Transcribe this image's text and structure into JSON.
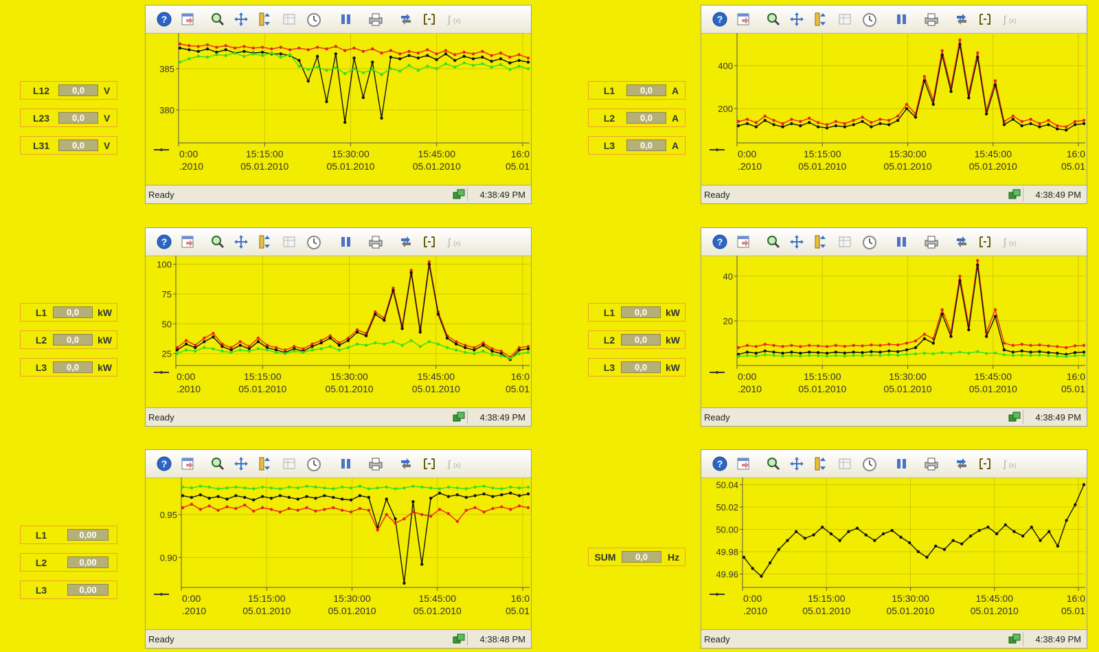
{
  "status_text": "Ready",
  "colors": {
    "background": "#f2ec00",
    "series_red": "#e8241e",
    "series_black": "#111111",
    "series_green": "#33e020"
  },
  "toolbar_icons": [
    "help-icon",
    "export-icon",
    "zoom-icon",
    "pan-icon",
    "scale-icon",
    "table-icon",
    "time-icon",
    "pause-icon",
    "print-icon",
    "sync-icon",
    "range-icon",
    "formula-icon"
  ],
  "panels": [
    {
      "time": "4:38:49 PM",
      "readouts": [
        {
          "label": "L12",
          "value": "0,0",
          "unit": "V"
        },
        {
          "label": "L23",
          "value": "0,0",
          "unit": "V"
        },
        {
          "label": "L31",
          "value": "0,0",
          "unit": "V"
        }
      ],
      "chart_data": {
        "type": "line",
        "yticks": [
          "385",
          "380"
        ],
        "ylim": [
          376,
          389
        ],
        "x_ticks": [
          {
            "time": "0:00",
            "date": ".2010"
          },
          {
            "time": "15:15:00",
            "date": "05.01.2010"
          },
          {
            "time": "15:30:00",
            "date": "05.01.2010"
          },
          {
            "time": "15:45:00",
            "date": "05.01.2010"
          },
          {
            "time": "16:0",
            "date": "05.01"
          }
        ],
        "series": [
          {
            "color": "red",
            "values": [
              388.0,
              387.8,
              387.7,
              387.9,
              387.6,
              387.8,
              387.5,
              387.7,
              387.5,
              387.6,
              387.4,
              387.6,
              387.3,
              387.5,
              387.3,
              387.6,
              387.4,
              387.7,
              387.2,
              387.5,
              387.1,
              387.4,
              386.9,
              387.2,
              386.8,
              387.1,
              386.9,
              387.3,
              386.8,
              387.2,
              386.7,
              387.0,
              386.8,
              387.1,
              386.6,
              386.9,
              386.4,
              386.7,
              386.3
            ]
          },
          {
            "color": "black",
            "values": [
              387.5,
              387.3,
              387.1,
              387.4,
              387.0,
              387.3,
              386.9,
              387.1,
              386.9,
              387.0,
              386.8,
              386.8,
              386.6,
              386.0,
              383.5,
              386.5,
              381.0,
              386.8,
              378.5,
              386.3,
              381.5,
              385.8,
              379.0,
              386.4,
              386.2,
              386.6,
              386.3,
              386.6,
              386.1,
              386.8,
              386.0,
              386.5,
              386.2,
              386.4,
              385.9,
              386.2,
              385.7,
              386.0,
              385.8
            ]
          },
          {
            "color": "green",
            "values": [
              385.8,
              386.2,
              386.5,
              386.4,
              386.7,
              386.6,
              386.9,
              386.5,
              386.8,
              386.6,
              386.9,
              386.4,
              386.7,
              385.3,
              384.9,
              385.2,
              384.8,
              385.1,
              384.4,
              385.0,
              384.5,
              384.9,
              384.3,
              385.0,
              384.7,
              385.4,
              384.8,
              385.3,
              385.0,
              385.6,
              385.2,
              385.7,
              385.4,
              385.6,
              385.2,
              385.5,
              384.9,
              385.3,
              385.0
            ]
          }
        ]
      }
    },
    {
      "time": "4:38:49 PM",
      "readouts": [
        {
          "label": "L1",
          "value": "0,0",
          "unit": "A"
        },
        {
          "label": "L2",
          "value": "0,0",
          "unit": "A"
        },
        {
          "label": "L3",
          "value": "0,0",
          "unit": "A"
        }
      ],
      "chart_data": {
        "type": "line",
        "yticks": [
          "400",
          "200"
        ],
        "ylim": [
          40,
          540
        ],
        "x_ticks": [
          {
            "time": "0:00",
            "date": ".2010"
          },
          {
            "time": "15:15:00",
            "date": "05.01.2010"
          },
          {
            "time": "15:30:00",
            "date": "05.01.2010"
          },
          {
            "time": "15:45:00",
            "date": "05.01.2010"
          },
          {
            "time": "16:0",
            "date": "05.01"
          }
        ],
        "series": [
          {
            "color": "red",
            "values": [
              140,
              150,
              135,
              165,
              145,
              130,
              150,
              140,
              155,
              135,
              125,
              140,
              130,
              145,
              160,
              135,
              150,
              145,
              165,
              220,
              175,
              350,
              240,
              470,
              300,
              520,
              270,
              460,
              190,
              330,
              140,
              165,
              140,
              150,
              130,
              145,
              120,
              115,
              140,
              145
            ]
          },
          {
            "color": "black",
            "values": [
              120,
              130,
              115,
              145,
              125,
              115,
              130,
              120,
              135,
              115,
              110,
              120,
              115,
              125,
              140,
              115,
              130,
              125,
              145,
              200,
              160,
              330,
              220,
              450,
              280,
              500,
              250,
              440,
              175,
              310,
              125,
              150,
              120,
              130,
              115,
              125,
              105,
              100,
              125,
              130
            ]
          }
        ]
      }
    },
    {
      "time": "4:38:49 PM",
      "readouts": [
        {
          "label": "L1",
          "value": "0,0",
          "unit": "kW"
        },
        {
          "label": "L2",
          "value": "0,0",
          "unit": "kW"
        },
        {
          "label": "L3",
          "value": "0,0",
          "unit": "kW"
        }
      ],
      "chart_data": {
        "type": "line",
        "yticks": [
          "100",
          "75",
          "50",
          "25"
        ],
        "ylim": [
          15,
          105
        ],
        "x_ticks": [
          {
            "time": "0:00",
            "date": ".2010"
          },
          {
            "time": "15:15:00",
            "date": "05.01.2010"
          },
          {
            "time": "15:30:00",
            "date": "05.01.2010"
          },
          {
            "time": "15:45:00",
            "date": "05.01.2010"
          },
          {
            "time": "16:0",
            "date": "05.01"
          }
        ],
        "series": [
          {
            "color": "red",
            "values": [
              30,
              36,
              32,
              38,
              42,
              33,
              30,
              35,
              31,
              38,
              32,
              30,
              28,
              31,
              29,
              33,
              36,
              40,
              34,
              38,
              45,
              42,
              60,
              55,
              80,
              48,
              95,
              45,
              102,
              60,
              40,
              35,
              32,
              30,
              34,
              29,
              27,
              22,
              30,
              31
            ]
          },
          {
            "color": "black",
            "values": [
              28,
              33,
              30,
              35,
              39,
              31,
              28,
              32,
              29,
              35,
              30,
              28,
              26,
              29,
              27,
              31,
              34,
              38,
              32,
              36,
              43,
              40,
              58,
              53,
              78,
              46,
              93,
              43,
              100,
              58,
              38,
              33,
              30,
              28,
              32,
              27,
              25,
              20,
              28,
              29
            ]
          },
          {
            "color": "green",
            "values": [
              25,
              28,
              27,
              30,
              29,
              27,
              26,
              28,
              27,
              29,
              28,
              26,
              25,
              27,
              26,
              28,
              29,
              31,
              28,
              30,
              33,
              32,
              34,
              33,
              35,
              32,
              36,
              31,
              35,
              33,
              30,
              28,
              26,
              25,
              27,
              24,
              23,
              21,
              25,
              26
            ]
          }
        ]
      }
    },
    {
      "time": "4:38:49 PM",
      "readouts": [
        {
          "label": "L1",
          "value": "0,0",
          "unit": "kW"
        },
        {
          "label": "L2",
          "value": "0,0",
          "unit": "kW"
        },
        {
          "label": "L3",
          "value": "0,0",
          "unit": "kW"
        }
      ],
      "chart_data": {
        "type": "line",
        "yticks": [
          "40",
          "20"
        ],
        "ylim": [
          0,
          48
        ],
        "x_ticks": [
          {
            "time": "0:00",
            "date": ".2010"
          },
          {
            "time": "15:15:00",
            "date": "05.01.2010"
          },
          {
            "time": "15:30:00",
            "date": "05.01.2010"
          },
          {
            "time": "15:45:00",
            "date": "05.01.2010"
          },
          {
            "time": "16:0",
            "date": "05.01"
          }
        ],
        "series": [
          {
            "color": "red",
            "values": [
              8,
              9,
              8.5,
              9.5,
              9,
              8.5,
              9,
              8.5,
              9,
              8.8,
              8.5,
              9,
              8.6,
              9,
              8.8,
              9.2,
              9,
              9.5,
              9.2,
              10,
              11,
              14,
              12,
              25,
              15,
              40,
              18,
              47,
              15,
              25,
              10,
              9,
              9.5,
              9,
              9.2,
              8.8,
              8.5,
              8,
              8.8,
              9
            ]
          },
          {
            "color": "black",
            "values": [
              5,
              6,
              5.5,
              6.5,
              6,
              5.5,
              6,
              5.5,
              6,
              5.8,
              5.5,
              6,
              5.6,
              6,
              5.8,
              6.2,
              6,
              6.5,
              6.2,
              7,
              8,
              12,
              10,
              23,
              13,
              38,
              16,
              45,
              13,
              22,
              7,
              6,
              6.5,
              6,
              6.2,
              5.8,
              5.5,
              5,
              5.8,
              6
            ]
          },
          {
            "color": "green",
            "values": [
              4,
              4.5,
              4.2,
              4.8,
              4.5,
              4.2,
              4.5,
              4.2,
              4.5,
              4.4,
              4.2,
              4.5,
              4.3,
              4.5,
              4.4,
              4.6,
              4.5,
              4.8,
              4.6,
              5,
              5.2,
              5.5,
              5.3,
              5.8,
              5.4,
              6,
              5.5,
              6.2,
              5.4,
              5.6,
              4.8,
              4.5,
              4.6,
              4.5,
              4.6,
              4.4,
              4.2,
              4,
              4.4,
              4.5
            ]
          }
        ]
      }
    },
    {
      "time": "4:38:48 PM",
      "readouts": [
        {
          "label": "L1",
          "value": "0,00",
          "unit": ""
        },
        {
          "label": "L2",
          "value": "0,00",
          "unit": ""
        },
        {
          "label": "L3",
          "value": "0,00",
          "unit": ""
        }
      ],
      "chart_data": {
        "type": "line",
        "yticks": [
          "0.95",
          "0.90"
        ],
        "ylim": [
          0.865,
          0.99
        ],
        "x_ticks": [
          {
            "time": "0:00",
            "date": ".2010"
          },
          {
            "time": "15:15:00",
            "date": "05.01.2010"
          },
          {
            "time": "15:30:00",
            "date": "05.01.2010"
          },
          {
            "time": "15:45:00",
            "date": "05.01.2010"
          },
          {
            "time": "16:0",
            "date": "05.01"
          }
        ],
        "series": [
          {
            "color": "green",
            "values": [
              0.982,
              0.981,
              0.983,
              0.982,
              0.98,
              0.981,
              0.982,
              0.981,
              0.98,
              0.982,
              0.981,
              0.98,
              0.982,
              0.981,
              0.983,
              0.982,
              0.981,
              0.98,
              0.982,
              0.981,
              0.983,
              0.98,
              0.981,
              0.982,
              0.98,
              0.981,
              0.983,
              0.982,
              0.981,
              0.98,
              0.982,
              0.981,
              0.98,
              0.982,
              0.983,
              0.981,
              0.98,
              0.982,
              0.981,
              0.982
            ]
          },
          {
            "color": "black",
            "values": [
              0.972,
              0.97,
              0.973,
              0.969,
              0.971,
              0.968,
              0.972,
              0.97,
              0.967,
              0.971,
              0.969,
              0.972,
              0.97,
              0.968,
              0.971,
              0.969,
              0.972,
              0.97,
              0.968,
              0.967,
              0.972,
              0.97,
              0.935,
              0.968,
              0.945,
              0.87,
              0.965,
              0.892,
              0.969,
              0.975,
              0.971,
              0.973,
              0.97,
              0.972,
              0.974,
              0.971,
              0.973,
              0.975,
              0.972,
              0.974
            ]
          },
          {
            "color": "red",
            "values": [
              0.958,
              0.962,
              0.956,
              0.96,
              0.955,
              0.959,
              0.957,
              0.961,
              0.954,
              0.958,
              0.956,
              0.953,
              0.957,
              0.955,
              0.958,
              0.954,
              0.956,
              0.958,
              0.955,
              0.953,
              0.957,
              0.955,
              0.932,
              0.95,
              0.94,
              0.945,
              0.953,
              0.95,
              0.948,
              0.956,
              0.951,
              0.942,
              0.955,
              0.958,
              0.953,
              0.957,
              0.959,
              0.956,
              0.96,
              0.958
            ]
          }
        ]
      }
    },
    {
      "time": "4:38:49 PM",
      "readouts": [
        {
          "label": "SUM",
          "value": "0,0",
          "unit": "Hz"
        }
      ],
      "chart_data": {
        "type": "line",
        "yticks": [
          "50.04",
          "50.02",
          "50.00",
          "49.98",
          "49.96"
        ],
        "ylim": [
          49.948,
          50.044
        ],
        "x_ticks": [
          {
            "time": "0:00",
            "date": ".2010"
          },
          {
            "time": "15:15:00",
            "date": "05.01.2010"
          },
          {
            "time": "15:30:00",
            "date": "05.01.2010"
          },
          {
            "time": "15:45:00",
            "date": "05.01.2010"
          },
          {
            "time": "16:0",
            "date": "05.01"
          }
        ],
        "series": [
          {
            "color": "black",
            "values": [
              49.975,
              49.965,
              49.958,
              49.97,
              49.982,
              49.99,
              49.998,
              49.992,
              49.995,
              50.002,
              49.996,
              49.99,
              49.998,
              50.001,
              49.995,
              49.99,
              49.996,
              49.999,
              49.993,
              49.988,
              49.98,
              49.975,
              49.985,
              49.982,
              49.99,
              49.987,
              49.994,
              49.999,
              50.002,
              49.996,
              50.004,
              49.998,
              49.994,
              50.002,
              49.99,
              49.998,
              49.985,
              50.008,
              50.022,
              50.04
            ]
          }
        ]
      }
    }
  ]
}
